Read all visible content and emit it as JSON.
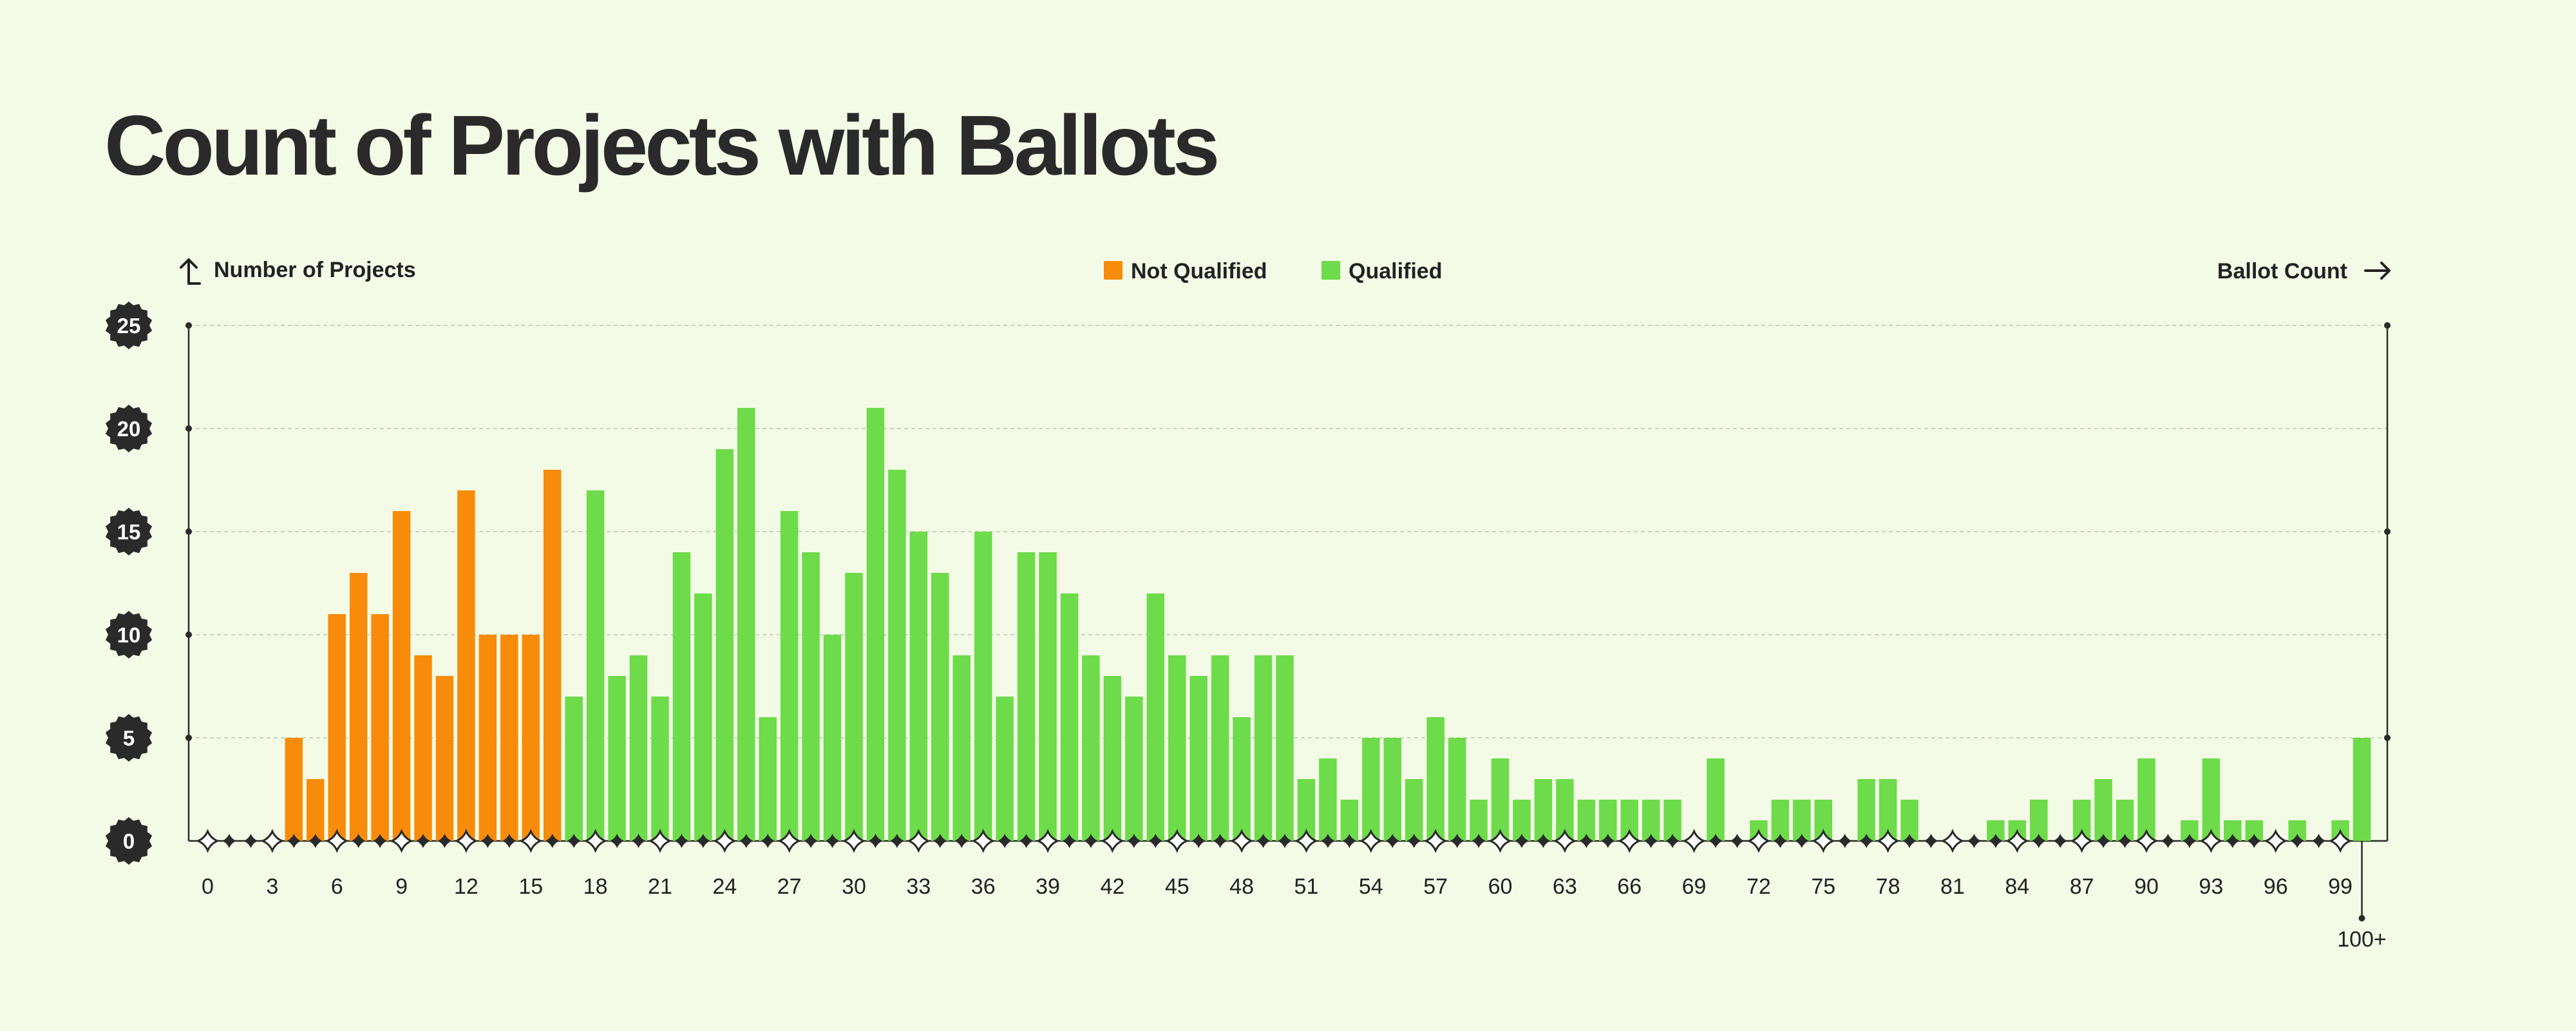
{
  "title": "Count of Projects with Ballots",
  "colors": {
    "not_qualified": "#f88c0a",
    "qualified": "#6ddb4a",
    "background": "#f3fbe6",
    "ink": "#2a2a2a"
  },
  "chart_data": {
    "type": "bar",
    "title": "Count of Projects with Ballots",
    "xlabel": "Ballot Count",
    "ylabel": "Number of Projects",
    "ylim": [
      0,
      25
    ],
    "yticks": [
      0,
      5,
      10,
      15,
      20,
      25
    ],
    "grid": true,
    "legend_position": "top-center",
    "categories": [
      "0",
      "1",
      "2",
      "3",
      "4",
      "5",
      "6",
      "7",
      "8",
      "9",
      "10",
      "11",
      "12",
      "13",
      "14",
      "15",
      "16",
      "17",
      "18",
      "19",
      "20",
      "21",
      "22",
      "23",
      "24",
      "25",
      "26",
      "27",
      "28",
      "29",
      "30",
      "31",
      "32",
      "33",
      "34",
      "35",
      "36",
      "37",
      "38",
      "39",
      "40",
      "41",
      "42",
      "43",
      "44",
      "45",
      "46",
      "47",
      "48",
      "49",
      "50",
      "51",
      "52",
      "53",
      "54",
      "55",
      "56",
      "57",
      "58",
      "59",
      "60",
      "61",
      "62",
      "63",
      "64",
      "65",
      "66",
      "67",
      "68",
      "69",
      "70",
      "71",
      "72",
      "73",
      "74",
      "75",
      "76",
      "77",
      "78",
      "79",
      "80",
      "81",
      "82",
      "83",
      "84",
      "85",
      "86",
      "87",
      "88",
      "89",
      "90",
      "91",
      "92",
      "93",
      "94",
      "95",
      "96",
      "97",
      "98",
      "99",
      "100+"
    ],
    "x_tick_labels": [
      "0",
      "3",
      "6",
      "9",
      "12",
      "15",
      "18",
      "21",
      "24",
      "27",
      "30",
      "33",
      "36",
      "39",
      "42",
      "45",
      "48",
      "51",
      "54",
      "57",
      "60",
      "63",
      "66",
      "69",
      "72",
      "75",
      "78",
      "81",
      "84",
      "87",
      "90",
      "93",
      "96",
      "99",
      "100+"
    ],
    "series": [
      {
        "name": "Not Qualified",
        "color": "#f88c0a",
        "values": [
          0,
          0,
          0,
          0,
          5,
          3,
          11,
          13,
          11,
          16,
          9,
          8,
          17,
          10,
          10,
          10,
          18,
          0,
          0,
          0,
          0,
          0,
          0,
          0,
          0,
          0,
          0,
          0,
          0,
          0,
          0,
          0,
          0,
          0,
          0,
          0,
          0,
          0,
          0,
          0,
          0,
          0,
          0,
          0,
          0,
          0,
          0,
          0,
          0,
          0,
          0,
          0,
          0,
          0,
          0,
          0,
          0,
          0,
          0,
          0,
          0,
          0,
          0,
          0,
          0,
          0,
          0,
          0,
          0,
          0,
          0,
          0,
          0,
          0,
          0,
          0,
          0,
          0,
          0,
          0,
          0,
          0,
          0,
          0,
          0,
          0,
          0,
          0,
          0,
          0,
          0,
          0,
          0,
          0,
          0,
          0,
          0,
          0,
          0,
          0,
          0
        ]
      },
      {
        "name": "Qualified",
        "color": "#6ddb4a",
        "values": [
          0,
          0,
          0,
          0,
          0,
          0,
          0,
          0,
          0,
          0,
          0,
          0,
          0,
          0,
          0,
          0,
          0,
          7,
          17,
          8,
          9,
          7,
          14,
          12,
          19,
          21,
          6,
          16,
          14,
          10,
          13,
          21,
          18,
          15,
          13,
          9,
          15,
          7,
          14,
          14,
          12,
          9,
          8,
          7,
          12,
          9,
          8,
          9,
          6,
          9,
          9,
          3,
          4,
          2,
          5,
          5,
          3,
          6,
          5,
          2,
          4,
          2,
          3,
          3,
          2,
          2,
          2,
          2,
          2,
          0,
          4,
          0,
          1,
          2,
          2,
          2,
          0,
          3,
          3,
          2,
          0,
          0,
          0,
          1,
          1,
          2,
          0,
          2,
          3,
          2,
          4,
          0,
          1,
          4,
          1,
          1,
          0,
          1,
          0,
          1,
          5
        ]
      }
    ]
  }
}
